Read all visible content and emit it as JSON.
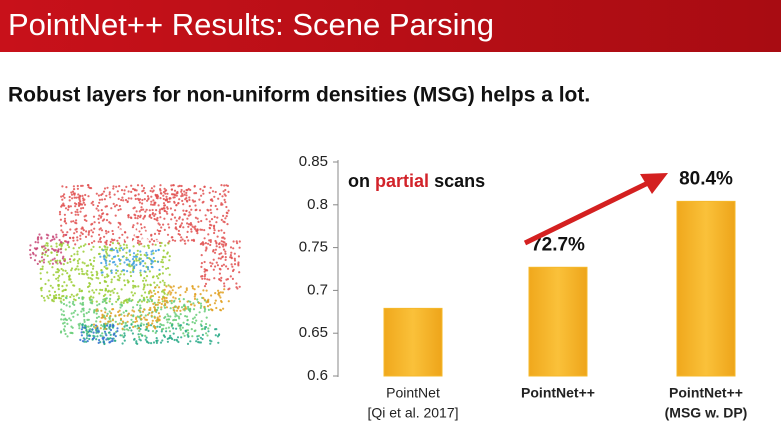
{
  "slide": {
    "title": "PointNet++ Results: Scene Parsing",
    "subtitle": "Robust layers for non-uniform densities (MSG) helps a lot."
  },
  "chart_data": {
    "type": "bar",
    "annotation": [
      "on",
      "partial",
      "scans"
    ],
    "categories": [
      [
        "PointNet",
        "[Qi et al. 2017]"
      ],
      [
        "PointNet++"
      ],
      [
        "PointNet++",
        "(MSG w. DP)"
      ]
    ],
    "values": [
      0.679,
      0.727,
      0.804
    ],
    "value_labels": [
      null,
      "72.7%",
      "80.4%"
    ],
    "color": "#f5b82a",
    "ylim": [
      0.6,
      0.85
    ],
    "yticks": [
      0.6,
      0.65,
      0.7,
      0.75,
      0.8,
      0.85
    ]
  }
}
